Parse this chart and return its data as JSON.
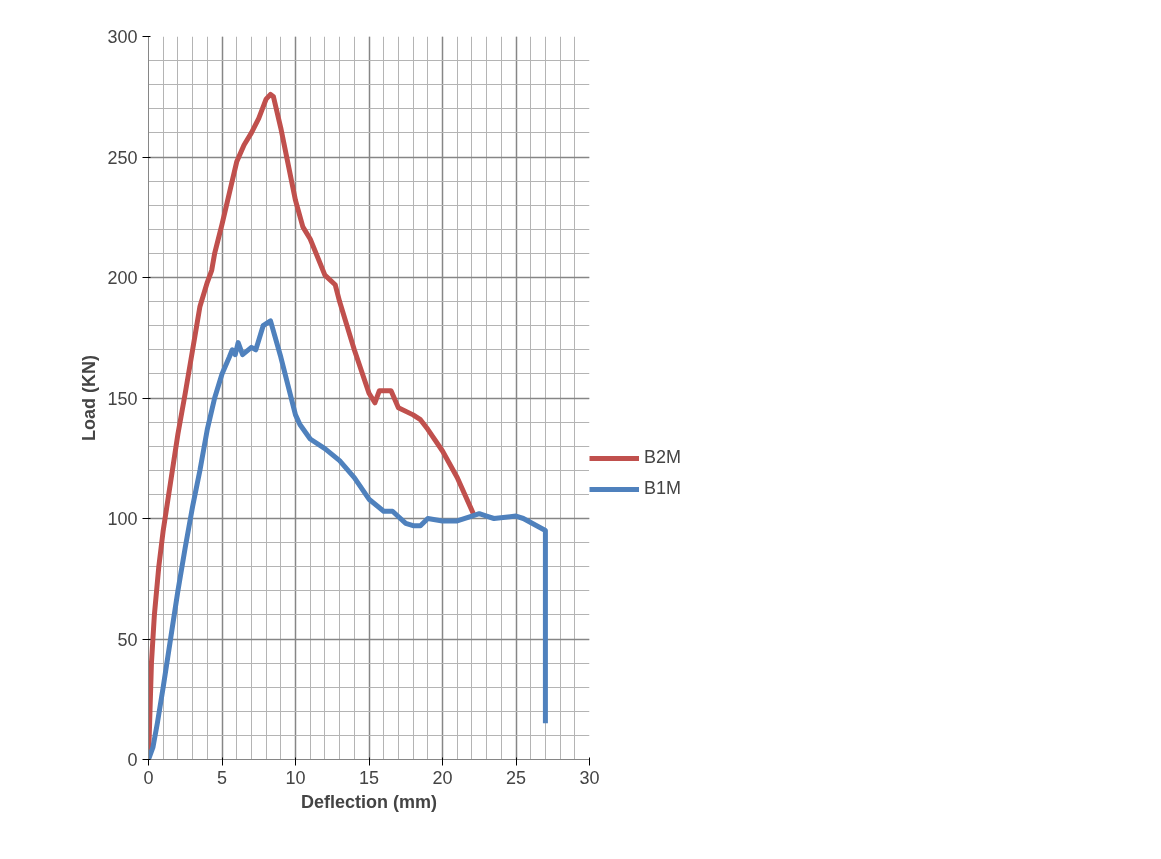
{
  "chart_data": {
    "type": "line",
    "xlabel": "Deflection (mm)",
    "ylabel": "Load (KN)",
    "xlim": [
      0,
      30
    ],
    "xticks": [
      0,
      5,
      10,
      15,
      20,
      25,
      30
    ],
    "ylim": [
      0,
      300
    ],
    "yticks": [
      0,
      50,
      100,
      150,
      200,
      250,
      300
    ],
    "grid": true,
    "legend": "right",
    "marker": "none",
    "line_style": "solid",
    "series": [
      {
        "name": "B2M",
        "color": "#c0504d",
        "x": [
          0,
          0.1,
          0.2,
          0.4,
          0.7,
          1,
          1.5,
          2,
          2.5,
          3,
          3.5,
          4,
          4.3,
          4.5,
          5,
          5.5,
          6,
          6.5,
          7,
          7.5,
          8,
          8.3,
          8.5,
          9,
          10,
          10.5,
          11,
          12,
          12.7,
          13,
          14,
          15,
          15.4,
          15.7,
          16.5,
          17,
          18,
          18.5,
          19,
          20,
          21,
          22.1
        ],
        "values": [
          0,
          20,
          40,
          60,
          80,
          95,
          115,
          135,
          152,
          170,
          188,
          198,
          203,
          210,
          222,
          235,
          248,
          255,
          260,
          266,
          274,
          276,
          275,
          262,
          232,
          221,
          216,
          201,
          197,
          190,
          170,
          152,
          148,
          153,
          153,
          146,
          143,
          141,
          137,
          128,
          117,
          102
        ]
      },
      {
        "name": "B1M",
        "color": "#4f81bd",
        "x": [
          0,
          0.3,
          0.6,
          1,
          1.5,
          2,
          2.5,
          3,
          3.5,
          4,
          4.5,
          5,
          5.5,
          5.7,
          5.9,
          6.1,
          6.4,
          7,
          7.3,
          7.8,
          8.3,
          9,
          10,
          10.3,
          11,
          12,
          13,
          14,
          15,
          16,
          16.6,
          17.5,
          18,
          18.5,
          19,
          20,
          21,
          22,
          22.5,
          23,
          23.5,
          25,
          25.5,
          27,
          27
        ],
        "values": [
          0,
          5,
          15,
          30,
          50,
          70,
          88,
          105,
          120,
          137,
          150,
          160,
          167,
          170,
          168,
          173,
          168,
          171,
          170,
          180,
          182,
          167,
          143,
          139,
          133,
          129,
          124,
          117,
          108,
          103,
          103,
          98,
          97,
          97,
          100,
          99,
          99,
          101,
          102,
          101,
          100,
          101,
          100,
          95,
          15
        ]
      }
    ]
  }
}
